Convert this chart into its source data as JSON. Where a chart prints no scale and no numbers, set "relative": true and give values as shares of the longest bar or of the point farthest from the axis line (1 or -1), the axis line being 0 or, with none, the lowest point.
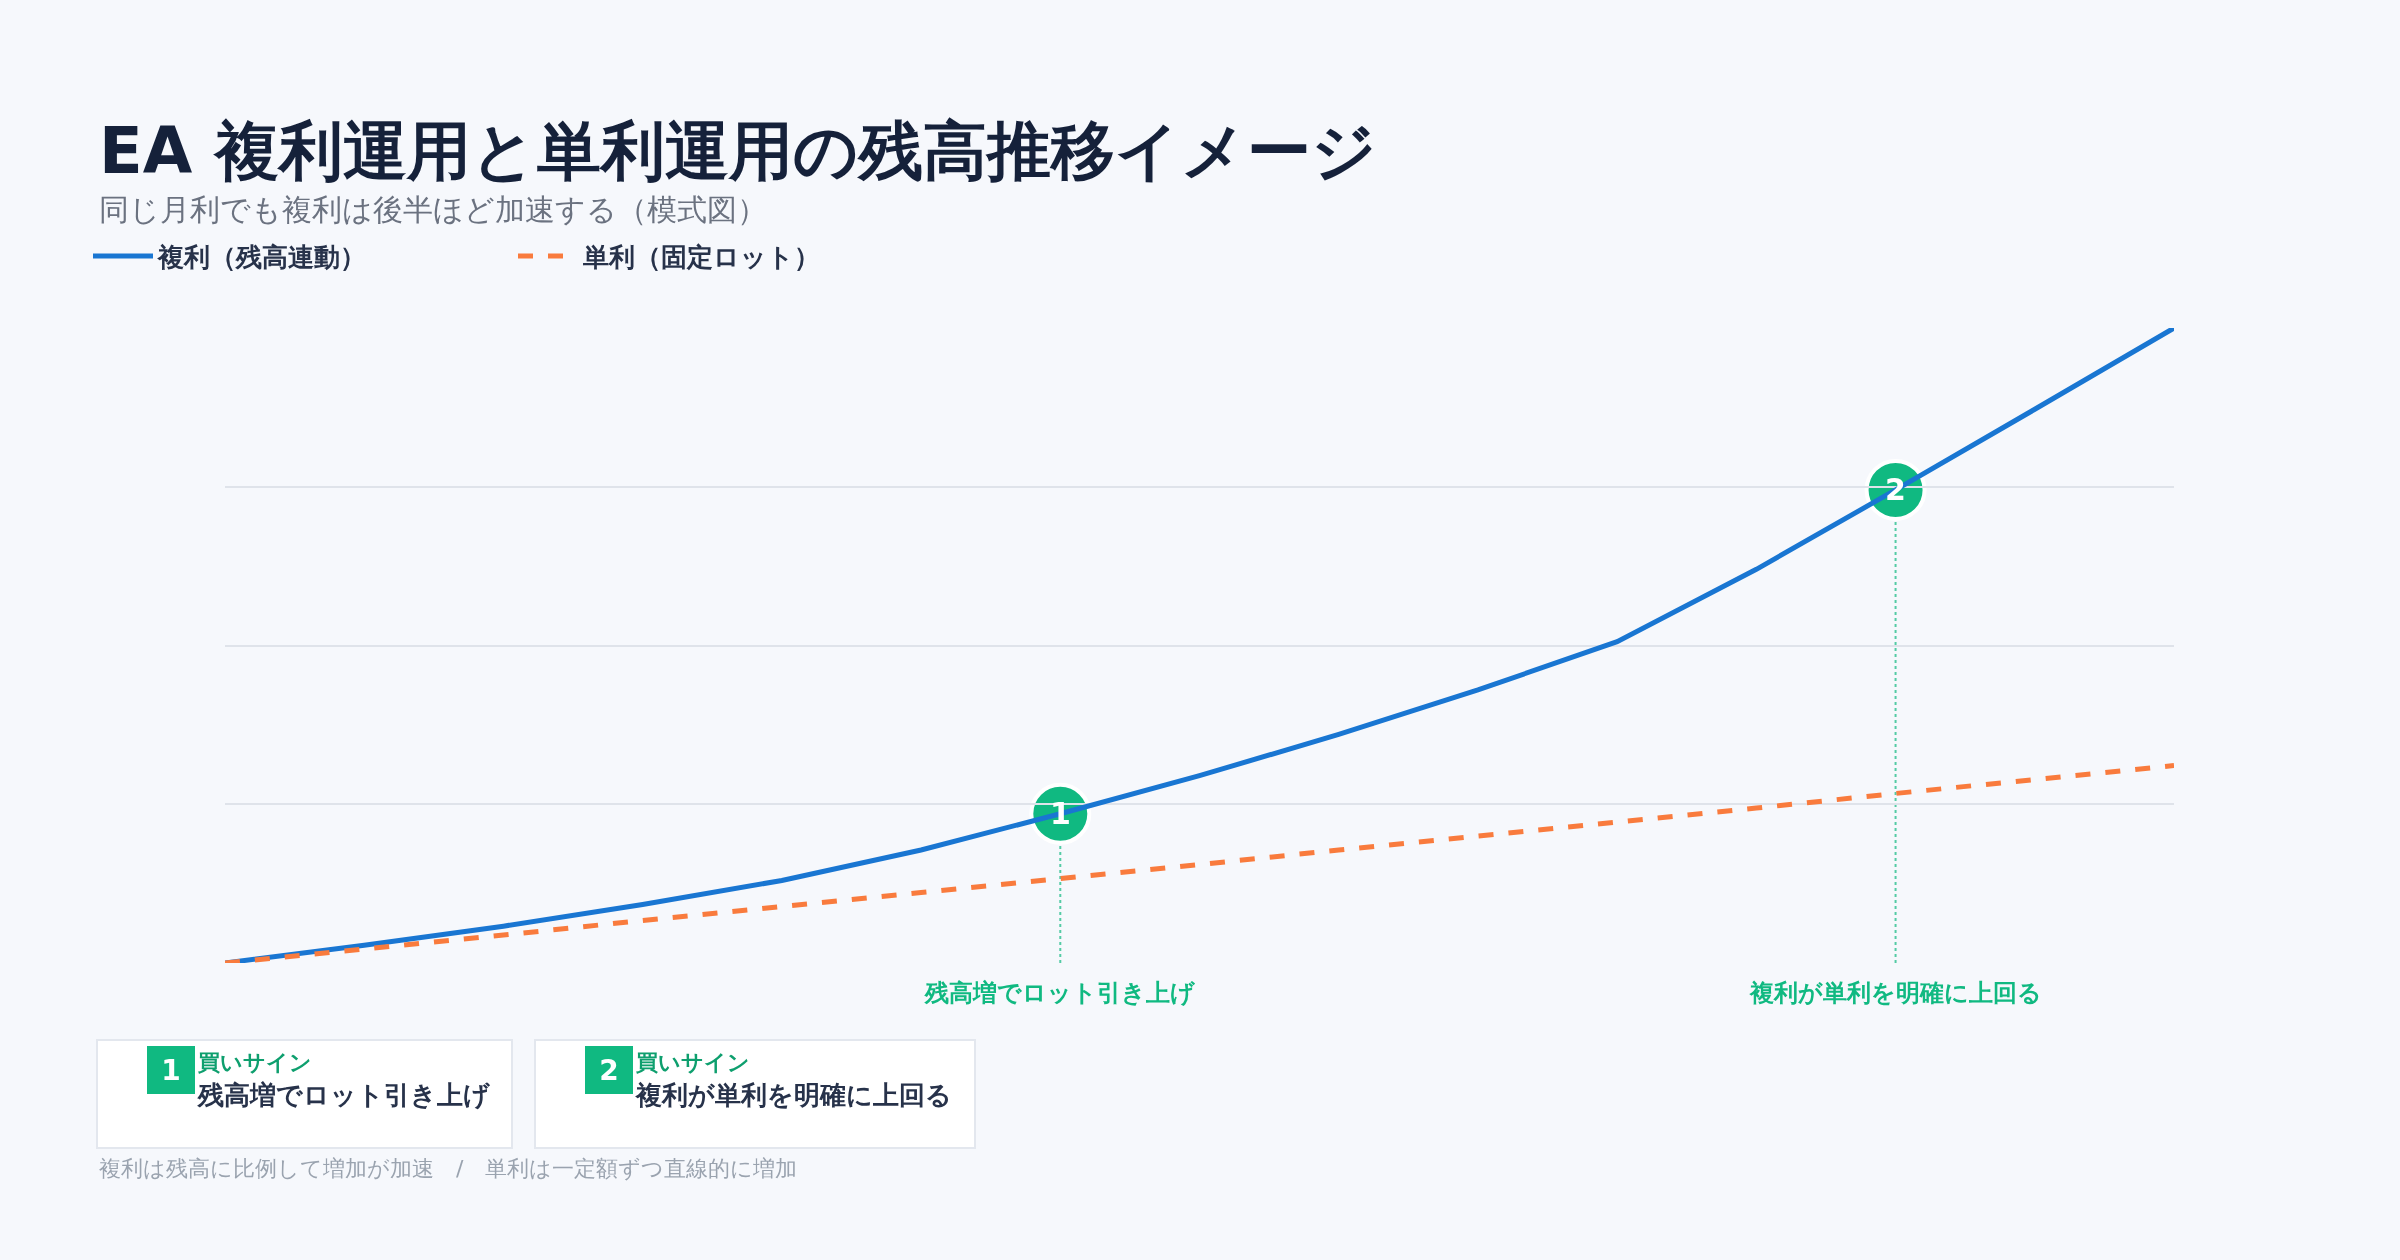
{
  "chart_data": {
    "type": "line",
    "title": "EA 複利運用と単利運用の残高推移イメージ",
    "subtitle": "同じ月利でも複利は後半ほど加速する（模式図）",
    "relative": true,
    "categories": [
      null,
      null,
      null,
      null,
      null,
      null,
      null,
      null,
      null,
      null,
      null,
      null,
      null,
      null,
      null
    ],
    "tick_labels": false,
    "grid": "y",
    "legend": "top left",
    "marker": "none",
    "series": [
      {
        "name": "複利（残高連動）",
        "color": "#1976d2",
        "line_style": "solid",
        "values": [
          0,
          0.028,
          0.058,
          0.092,
          0.13,
          0.178,
          0.235,
          0.295,
          0.36,
          0.43,
          0.506,
          0.62,
          0.745,
          0.872,
          1.0
        ]
      },
      {
        "name": "単利（固定ロット）",
        "color": "#f97b3d",
        "line_style": "dashed",
        "values": [
          0,
          0.022,
          0.044,
          0.067,
          0.089,
          0.111,
          0.133,
          0.155,
          0.178,
          0.2,
          0.222,
          0.244,
          0.267,
          0.289,
          0.311
        ]
      }
    ],
    "annotations": [
      {
        "text": "1",
        "y": 0.235
      },
      {
        "text": "2",
        "y": 0.745
      },
      "残高増でロット引き上げ",
      "複利が単利を明確に上回る",
      "1",
      "買いサイン",
      "残高増でロット引き上げ",
      "2",
      "買いサイン",
      "複利が単利を明確に上回る",
      "複利は残高に比例して増加が加速　/　単利は一定額ずつ直線的に増加"
    ]
  }
}
